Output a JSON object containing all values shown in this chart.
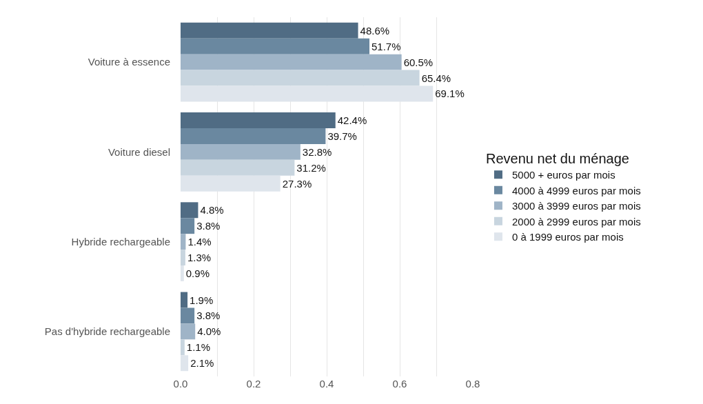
{
  "chart_data": {
    "type": "bar",
    "orientation": "horizontal",
    "categories": [
      "Voiture à essence",
      "Voiture diesel",
      "Hybride rechargeable",
      "Pas d'hybride rechargeable"
    ],
    "legend_title": "Revenu net du ménage",
    "series": [
      {
        "name": "5000 + euros par mois",
        "color": "#506c84",
        "values": [
          0.486,
          0.424,
          0.048,
          0.019
        ],
        "value_labels": [
          "48.6%",
          "42.4%",
          "4.8%",
          "1.9%"
        ]
      },
      {
        "name": "4000 à 4999 euros par mois",
        "color": "#6a88a0",
        "values": [
          0.517,
          0.397,
          0.038,
          0.038
        ],
        "value_labels": [
          "51.7%",
          "39.7%",
          "3.8%",
          "3.8%"
        ]
      },
      {
        "name": "3000 à 3999 euros par mois",
        "color": "#9fb4c7",
        "values": [
          0.605,
          0.328,
          0.014,
          0.04
        ],
        "value_labels": [
          "60.5%",
          "32.8%",
          "1.4%",
          "4.0%"
        ]
      },
      {
        "name": "2000 à 2999 euros par mois",
        "color": "#c8d5df",
        "values": [
          0.654,
          0.312,
          0.013,
          0.011
        ],
        "value_labels": [
          "65.4%",
          "31.2%",
          "1.3%",
          "1.1%"
        ]
      },
      {
        "name": "0 à 1999 euros par mois",
        "color": "#dfe5ec",
        "values": [
          0.691,
          0.273,
          0.009,
          0.021
        ],
        "value_labels": [
          "69.1%",
          "27.3%",
          "0.9%",
          "2.1%"
        ]
      }
    ],
    "xlim": [
      0,
      0.8
    ],
    "xticks": [
      {
        "value": 0,
        "label": "0.0"
      },
      {
        "value": 0.1,
        "label": null
      },
      {
        "value": 0.2,
        "label": "0.2"
      },
      {
        "value": 0.3,
        "label": null
      },
      {
        "value": 0.4,
        "label": "0.4"
      },
      {
        "value": 0.5,
        "label": null
      },
      {
        "value": 0.6,
        "label": "0.6"
      },
      {
        "value": 0.7,
        "label": null
      },
      {
        "value": 0.8,
        "label": "0.8"
      }
    ],
    "grid": "x",
    "legend": "right"
  }
}
